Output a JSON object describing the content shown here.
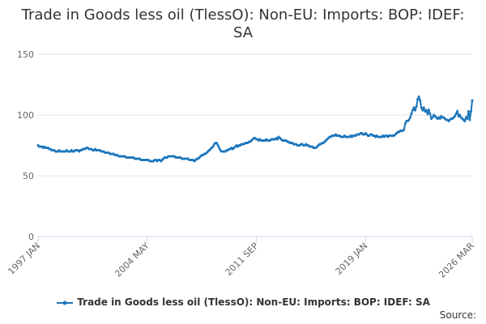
{
  "chart_data": {
    "type": "line",
    "title": "Trade in Goods less oil (TlessO): Non-EU: Imports: BOP: IDEF: SA",
    "source": "Source:",
    "categories": [
      "1997 JAN",
      null,
      null,
      null,
      null,
      null,
      null,
      null,
      null,
      null,
      null,
      null,
      null,
      null,
      null,
      null,
      null,
      null,
      null,
      null,
      null,
      null,
      null,
      null,
      null,
      null,
      null,
      null,
      null,
      null,
      null,
      null,
      null,
      null,
      null,
      null,
      null,
      null,
      null,
      null,
      null,
      null,
      null,
      null,
      null,
      null,
      null,
      null,
      null,
      null,
      null,
      null,
      null,
      null,
      null,
      null,
      null,
      null,
      null,
      null,
      null,
      null,
      null,
      null,
      null,
      null,
      null,
      null,
      null,
      null,
      null,
      null,
      null,
      null,
      null,
      null,
      null,
      null,
      null,
      null,
      null,
      null,
      null,
      null,
      null,
      null,
      null,
      null,
      "2004 MAY",
      null,
      null,
      null,
      null,
      null,
      null,
      null,
      null,
      null,
      null,
      null,
      null,
      null,
      null,
      null,
      null,
      null,
      null,
      null,
      null,
      null,
      null,
      null,
      null,
      null,
      null,
      null,
      null,
      null,
      null,
      null,
      null,
      null,
      null,
      null,
      null,
      null,
      null,
      null,
      null,
      null,
      null,
      null,
      null,
      null,
      null,
      null,
      null,
      null,
      null,
      null,
      null,
      null,
      null,
      null,
      null,
      null,
      null,
      null,
      null,
      null,
      null,
      null,
      null,
      null,
      null,
      null,
      null,
      null,
      null,
      null,
      null,
      null,
      null,
      null,
      null,
      null,
      null,
      null,
      null,
      null,
      null,
      null,
      null,
      null,
      null,
      null,
      "2011 SEP",
      null,
      null,
      null,
      null,
      null,
      null,
      null,
      null,
      null,
      null,
      null,
      null,
      null,
      null,
      null,
      null,
      null,
      null,
      null,
      null,
      null,
      null,
      null,
      null,
      null,
      null,
      null,
      null,
      null,
      null,
      null,
      null,
      null,
      null,
      null,
      null,
      null,
      null,
      null,
      null,
      null,
      null,
      null,
      null,
      null,
      null,
      null,
      null,
      null,
      null,
      null,
      null,
      null,
      null,
      null,
      null,
      null,
      null,
      null,
      null,
      null,
      null,
      null,
      null,
      null,
      null,
      null,
      null,
      null,
      null,
      null,
      null,
      null,
      null,
      null,
      null,
      null,
      null,
      null,
      null,
      null,
      null,
      null,
      null,
      null,
      null,
      null,
      "2019 JAN",
      null,
      null,
      null,
      null,
      null,
      null,
      null,
      null,
      null,
      null,
      null,
      null,
      null,
      null,
      null,
      null,
      null,
      null,
      null,
      null,
      null,
      null,
      null,
      null,
      null,
      null,
      null,
      null,
      null,
      null,
      null,
      null,
      null,
      null,
      null,
      null,
      null,
      null,
      null,
      null,
      null,
      null,
      null,
      null,
      null,
      null,
      null,
      null,
      null,
      null,
      null,
      null,
      null,
      null,
      null,
      null,
      null,
      null,
      null,
      null,
      null,
      null,
      null,
      null,
      null,
      null,
      null,
      null,
      null,
      null,
      null,
      null,
      null,
      null,
      null,
      null,
      null,
      null,
      null,
      null,
      null,
      null,
      null,
      null,
      null,
      "2026 MAR"
    ],
    "series": [
      {
        "name": "Trade in Goods less oil (TlessO): Non-EU: Imports: BOP: IDEF: SA",
        "color": "#1b75bb",
        "values": [
          75,
          74,
          74,
          74,
          73,
          74,
          73,
          73,
          73,
          72,
          72,
          71,
          71,
          71,
          70,
          70,
          70,
          71,
          70,
          70,
          70,
          70,
          70,
          71,
          70,
          70,
          70,
          71,
          70,
          70,
          71,
          71,
          71,
          70,
          71,
          71,
          72,
          72,
          72,
          73,
          73,
          72,
          72,
          72,
          71,
          71,
          72,
          71,
          71,
          71,
          71,
          70,
          70,
          70,
          69,
          69,
          69,
          69,
          68,
          68,
          68,
          68,
          67,
          67,
          67,
          66,
          66,
          66,
          66,
          66,
          66,
          65,
          65,
          65,
          65,
          65,
          65,
          65,
          64,
          64,
          64,
          64,
          64,
          63,
          63,
          63,
          63,
          63,
          63,
          63,
          62,
          62,
          62,
          62,
          63,
          63,
          62,
          63,
          63,
          62,
          63,
          64,
          65,
          65,
          65,
          66,
          66,
          66,
          66,
          66,
          66,
          65,
          65,
          65,
          65,
          65,
          64,
          64,
          64,
          64,
          64,
          64,
          63,
          63,
          63,
          63,
          62,
          63,
          64,
          64,
          65,
          66,
          67,
          67,
          68,
          68,
          69,
          70,
          71,
          72,
          73,
          74,
          76,
          77,
          77,
          75,
          73,
          71,
          70,
          70,
          70,
          70,
          71,
          71,
          72,
          72,
          73,
          72,
          73,
          74,
          75,
          74,
          75,
          75,
          76,
          76,
          76,
          77,
          77,
          77,
          78,
          78,
          79,
          80,
          81,
          81,
          80,
          80,
          79,
          80,
          79,
          79,
          79,
          79,
          80,
          79,
          79,
          79,
          80,
          80,
          80,
          80,
          81,
          80,
          82,
          81,
          80,
          79,
          79,
          79,
          79,
          78,
          78,
          77,
          77,
          77,
          76,
          76,
          76,
          75,
          75,
          75,
          76,
          76,
          75,
          75,
          76,
          75,
          75,
          74,
          74,
          74,
          73,
          73,
          73,
          74,
          75,
          76,
          76,
          77,
          77,
          78,
          79,
          80,
          81,
          82,
          82,
          83,
          83,
          83,
          84,
          83,
          83,
          83,
          82,
          82,
          82,
          83,
          82,
          82,
          82,
          82,
          83,
          82,
          83,
          83,
          83,
          84,
          84,
          84,
          85,
          85,
          84,
          84,
          85,
          84,
          83,
          83,
          84,
          84,
          83,
          83,
          82,
          83,
          82,
          82,
          82,
          82,
          83,
          82,
          83,
          83,
          82,
          83,
          83,
          83,
          83,
          83,
          84,
          85,
          86,
          86,
          87,
          87,
          87,
          88,
          93,
          95,
          95,
          96,
          98,
          101,
          104,
          106,
          104,
          107,
          113,
          115,
          112,
          106,
          104,
          106,
          103,
          104,
          101,
          104,
          101,
          97,
          98,
          100,
          99,
          98,
          97,
          98,
          97,
          99,
          98,
          98,
          97,
          96,
          96,
          95,
          96,
          97,
          97,
          98,
          99,
          101,
          103,
          99,
          100,
          98,
          97,
          96,
          95,
          98,
          97,
          103,
          96,
          103,
          112
        ]
      }
    ],
    "ylim": [
      0,
      150
    ],
    "yticks": [
      0,
      50,
      100,
      150
    ],
    "grid": true
  }
}
